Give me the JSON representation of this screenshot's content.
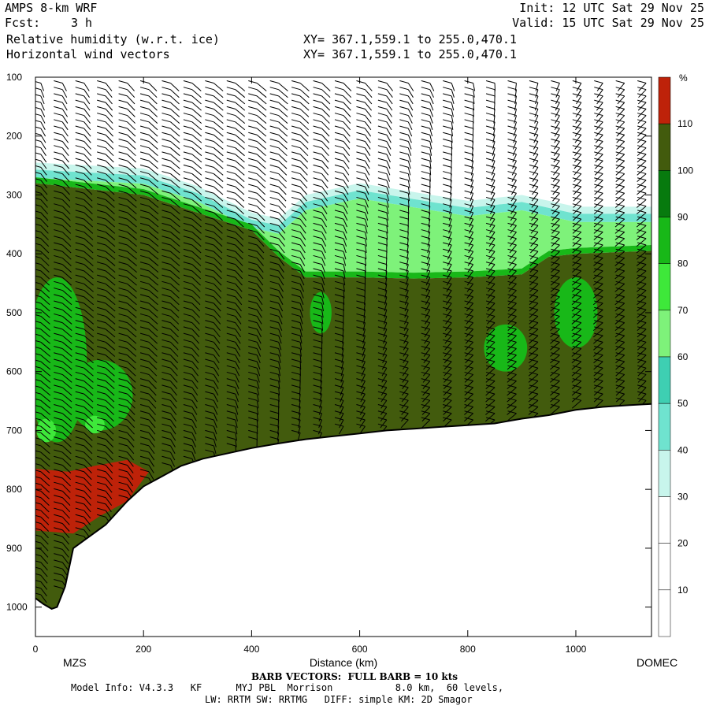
{
  "header": {
    "model": "AMPS 8-km WRF",
    "fcst_label": "Fcst:",
    "fcst_value": "3 h",
    "init": "Init: 12 UTC Sat 29 Nov 25",
    "valid": "Valid: 15 UTC Sat 29 Nov 25",
    "field1": "Relative humidity (w.r.t. ice)",
    "field2": "Horizontal wind vectors",
    "xy1": "XY= 367.1,559.1 to 255.0,470.1",
    "xy2": "XY= 367.1,559.1 to 255.0,470.1"
  },
  "footer": {
    "barb_note": "BARB VECTORS:  FULL BARB = 10 kts",
    "model_info": "Model Info: V4.3.3   KF      MYJ PBL  Morrison           8.0 km,  60 levels,",
    "physics": "LW: RRTM SW: RRTMG   DIFF: simple KM: 2D Smagor"
  },
  "chart_data": {
    "type": "heatmap",
    "xlabel": "Distance (km)",
    "ylabel": "",
    "xlim": [
      0,
      1140
    ],
    "ylim": [
      1050,
      100
    ],
    "x_ticks": [
      0,
      200,
      400,
      600,
      800,
      1000
    ],
    "y_ticks": [
      100,
      200,
      300,
      400,
      500,
      600,
      700,
      800,
      900,
      1000
    ],
    "endpoints": {
      "left": "MZS",
      "right": "DOMEC"
    },
    "colorbar": {
      "unit": "%",
      "levels": [
        10,
        20,
        30,
        40,
        50,
        60,
        70,
        80,
        90,
        100,
        110
      ],
      "colors": [
        "#ffffff",
        "#ffffff",
        "#ffffff",
        "#c8f5ec",
        "#6fe3cf",
        "#3ecfb2",
        "#7ef27a",
        "#3ee83a",
        "#18b818",
        "#077a0e",
        "#425b0d",
        "#be2209"
      ]
    },
    "terrain_pressure": [
      [
        0,
        985
      ],
      [
        15,
        995
      ],
      [
        30,
        1003
      ],
      [
        40,
        1000
      ],
      [
        55,
        965
      ],
      [
        70,
        900
      ],
      [
        100,
        880
      ],
      [
        130,
        860
      ],
      [
        170,
        820
      ],
      [
        200,
        795
      ],
      [
        230,
        780
      ],
      [
        270,
        760
      ],
      [
        310,
        748
      ],
      [
        350,
        740
      ],
      [
        400,
        730
      ],
      [
        450,
        722
      ],
      [
        500,
        715
      ],
      [
        550,
        710
      ],
      [
        600,
        705
      ],
      [
        650,
        700
      ],
      [
        700,
        697
      ],
      [
        750,
        694
      ],
      [
        800,
        691
      ],
      [
        850,
        688
      ],
      [
        900,
        680
      ],
      [
        950,
        674
      ],
      [
        1000,
        665
      ],
      [
        1050,
        660
      ],
      [
        1100,
        657
      ],
      [
        1140,
        655
      ]
    ],
    "moist_top_pressure": [
      [
        0,
        270
      ],
      [
        200,
        290
      ],
      [
        300,
        320
      ],
      [
        400,
        350
      ],
      [
        450,
        395
      ],
      [
        500,
        430
      ],
      [
        600,
        430
      ],
      [
        700,
        432
      ],
      [
        800,
        430
      ],
      [
        900,
        425
      ],
      [
        950,
        395
      ],
      [
        1000,
        390
      ],
      [
        1140,
        385
      ]
    ],
    "cloud_top_pressure": [
      [
        0,
        245
      ],
      [
        200,
        255
      ],
      [
        300,
        285
      ],
      [
        400,
        330
      ],
      [
        450,
        340
      ],
      [
        500,
        300
      ],
      [
        600,
        280
      ],
      [
        700,
        295
      ],
      [
        800,
        310
      ],
      [
        900,
        300
      ],
      [
        1000,
        320
      ],
      [
        1140,
        320
      ]
    ],
    "ice_supersaturation_region": {
      "x_range": [
        0,
        210
      ],
      "p_range": [
        750,
        875
      ],
      "rh_percent": 115
    }
  }
}
